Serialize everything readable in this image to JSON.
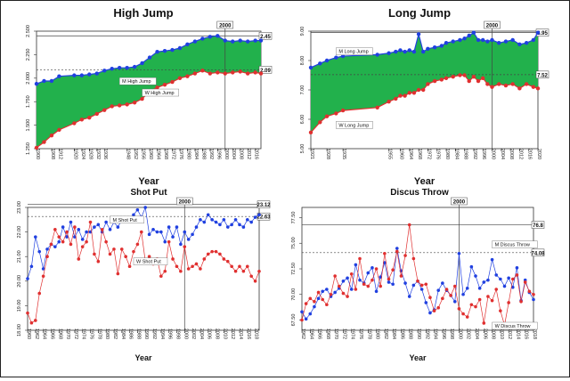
{
  "charts": [
    {
      "type": "area",
      "title": "High Jump",
      "xlabel": "Year",
      "yticks": [
        "1.250",
        "1.500",
        "1.750",
        "2.000",
        "2.250",
        "2.500"
      ],
      "ylim": [
        1.25,
        2.5
      ],
      "xticks": [
        "1900",
        "1908",
        "1912",
        "1920",
        "1924",
        "1928",
        "1932",
        "1936",
        "1948",
        "1952",
        "1956",
        "1960",
        "1964",
        "1968",
        "1972",
        "1976",
        "1980",
        "1984",
        "1988",
        "1992",
        "1996",
        "2000",
        "2004",
        "2008",
        "2012",
        "2016",
        "2020"
      ],
      "vline_x": 2000,
      "vline_label": "2000",
      "hlines": [
        {
          "y": 2.45,
          "label": "2.45",
          "style": "solid"
        },
        {
          "y": 2.09,
          "label": "2.09",
          "style": "dashed"
        }
      ],
      "series": [
        {
          "name": "M High Jump",
          "color": "#2040e0",
          "x": [
            1900,
            1904,
            1908,
            1912,
            1920,
            1924,
            1928,
            1932,
            1936,
            1940,
            1944,
            1948,
            1952,
            1956,
            1960,
            1964,
            1968,
            1972,
            1976,
            1980,
            1984,
            1988,
            1992,
            1996,
            2000,
            2004,
            2008,
            2012,
            2016,
            2019
          ],
          "y": [
            1.94,
            1.97,
            1.97,
            2.02,
            2.03,
            2.03,
            2.04,
            2.05,
            2.08,
            2.1,
            2.11,
            2.11,
            2.12,
            2.16,
            2.22,
            2.28,
            2.29,
            2.3,
            2.32,
            2.36,
            2.39,
            2.42,
            2.44,
            2.45,
            2.4,
            2.39,
            2.4,
            2.39,
            2.4,
            2.4
          ]
        },
        {
          "name": "W High Jump",
          "color": "#e03030",
          "x": [
            1900,
            1904,
            1908,
            1912,
            1920,
            1924,
            1928,
            1932,
            1936,
            1940,
            1944,
            1948,
            1952,
            1956,
            1960,
            1964,
            1968,
            1972,
            1976,
            1980,
            1984,
            1988,
            1992,
            1996,
            2000,
            2004,
            2008,
            2012,
            2016,
            2019
          ],
          "y": [
            1.26,
            1.32,
            1.39,
            1.45,
            1.52,
            1.56,
            1.58,
            1.62,
            1.66,
            1.7,
            1.71,
            1.72,
            1.74,
            1.78,
            1.86,
            1.9,
            1.93,
            1.96,
            2.0,
            2.02,
            2.05,
            2.08,
            2.05,
            2.06,
            2.05,
            2.06,
            2.07,
            2.05,
            2.06,
            2.05
          ]
        }
      ],
      "annotations": [
        "M High Jump",
        "W High Jump"
      ]
    },
    {
      "type": "area",
      "title": "Long Jump",
      "xlabel": "Year",
      "yticks": [
        "5.00",
        "6.00",
        "7.00",
        "8.00",
        "9.00"
      ],
      "ylim": [
        5.0,
        9.0
      ],
      "xticks": [
        "1921",
        "1928",
        "1935",
        "1955",
        "1960",
        "1964",
        "1968",
        "1972",
        "1976",
        "1980",
        "1984",
        "1988",
        "1992",
        "1996",
        "2000",
        "2004",
        "2008",
        "2012",
        "2016",
        "2020"
      ],
      "vline_x": 2000,
      "vline_label": "2000",
      "hlines": [
        {
          "y": 8.95,
          "label": "8.95",
          "style": "solid"
        },
        {
          "y": 7.52,
          "label": "7.52",
          "style": "dashed"
        }
      ],
      "series": [
        {
          "name": "M Long Jump",
          "color": "#2040e0",
          "x": [
            1921,
            1925,
            1928,
            1932,
            1935,
            1950,
            1955,
            1958,
            1960,
            1962,
            1964,
            1966,
            1968,
            1970,
            1972,
            1975,
            1978,
            1980,
            1983,
            1986,
            1988,
            1990,
            1992,
            1994,
            1996,
            1998,
            2000,
            2003,
            2006,
            2009,
            2012,
            2015,
            2018,
            2020
          ],
          "y": [
            7.76,
            7.9,
            8.0,
            8.1,
            8.15,
            8.2,
            8.25,
            8.3,
            8.35,
            8.3,
            8.35,
            8.3,
            8.9,
            8.3,
            8.4,
            8.45,
            8.5,
            8.6,
            8.65,
            8.7,
            8.75,
            8.85,
            8.95,
            8.7,
            8.7,
            8.65,
            8.7,
            8.6,
            8.65,
            8.7,
            8.55,
            8.6,
            8.7,
            8.95
          ]
        },
        {
          "name": "W Long Jump",
          "color": "#e03030",
          "x": [
            1921,
            1925,
            1928,
            1932,
            1935,
            1950,
            1955,
            1958,
            1960,
            1962,
            1964,
            1966,
            1968,
            1970,
            1972,
            1975,
            1978,
            1980,
            1983,
            1986,
            1988,
            1990,
            1992,
            1994,
            1996,
            1998,
            2000,
            2003,
            2006,
            2009,
            2012,
            2015,
            2018,
            2020
          ],
          "y": [
            5.55,
            5.9,
            6.1,
            6.2,
            6.3,
            6.4,
            6.6,
            6.7,
            6.8,
            6.8,
            6.9,
            6.9,
            7.0,
            7.0,
            7.2,
            7.3,
            7.35,
            7.4,
            7.45,
            7.5,
            7.5,
            7.3,
            7.45,
            7.3,
            7.4,
            7.2,
            7.1,
            7.2,
            7.15,
            7.2,
            7.05,
            7.2,
            7.1,
            7.05
          ]
        }
      ],
      "annotations": [
        "M Long Jump",
        "W Long Jump"
      ]
    },
    {
      "type": "line",
      "title": "Shot Put",
      "xlabel": "Year",
      "yticks": [
        "18.00",
        "19.00",
        "20.00",
        "21.00",
        "22.00",
        "23.00"
      ],
      "ylim": [
        18.0,
        23.0
      ],
      "xticks": [
        "1960",
        "1962",
        "1964",
        "1966",
        "1968",
        "1970",
        "1972",
        "1974",
        "1976",
        "1978",
        "1980",
        "1982",
        "1984",
        "1986",
        "1988",
        "1990",
        "1992",
        "1994",
        "1996",
        "1998",
        "2000",
        "2002",
        "2004",
        "2006",
        "2008",
        "2010",
        "2012",
        "2014",
        "2016",
        "2018"
      ],
      "vline_x": 2000,
      "vline_label": "2000",
      "hlines": [
        {
          "y": 23.12,
          "label": "23.12",
          "style": "solid"
        },
        {
          "y": 22.63,
          "label": "22.63",
          "style": "dashed"
        }
      ],
      "series": [
        {
          "name": "M Shot Put",
          "color": "#2040e0",
          "x": [
            1960,
            1961,
            1962,
            1963,
            1964,
            1965,
            1966,
            1967,
            1968,
            1969,
            1970,
            1971,
            1972,
            1973,
            1974,
            1975,
            1976,
            1977,
            1978,
            1979,
            1980,
            1981,
            1982,
            1983,
            1984,
            1985,
            1986,
            1987,
            1988,
            1989,
            1990,
            1991,
            1992,
            1993,
            1994,
            1995,
            1996,
            1997,
            1998,
            1999,
            2000,
            2001,
            2002,
            2003,
            2004,
            2005,
            2006,
            2007,
            2008,
            2009,
            2010,
            2011,
            2012,
            2013,
            2014,
            2015,
            2016,
            2017,
            2018,
            2019
          ],
          "y": [
            20.1,
            20.6,
            21.8,
            21.2,
            20.5,
            21.3,
            21.5,
            21.4,
            21.6,
            22.2,
            21.8,
            22.4,
            21.8,
            22.1,
            21.7,
            22.0,
            22.0,
            22.2,
            22.3,
            22.0,
            22.4,
            22.1,
            22.4,
            22.2,
            22.5,
            22.5,
            22.5,
            22.7,
            22.9,
            22.6,
            23.0,
            21.9,
            22.1,
            22.0,
            22.0,
            21.6,
            22.2,
            21.8,
            22.2,
            21.5,
            22.0,
            21.7,
            21.9,
            22.2,
            22.5,
            22.4,
            22.7,
            22.5,
            22.4,
            22.3,
            22.5,
            22.2,
            22.3,
            22.5,
            22.3,
            22.2,
            22.5,
            22.4,
            22.6,
            22.7
          ]
        },
        {
          "name": "W Shot Put",
          "color": "#e03030",
          "x": [
            1960,
            1961,
            1962,
            1963,
            1964,
            1965,
            1966,
            1967,
            1968,
            1969,
            1970,
            1971,
            1972,
            1973,
            1974,
            1975,
            1976,
            1977,
            1978,
            1979,
            1980,
            1981,
            1982,
            1983,
            1984,
            1985,
            1986,
            1987,
            1988,
            1989,
            1990,
            1991,
            1992,
            1993,
            1994,
            1995,
            1996,
            1997,
            1998,
            1999,
            2000,
            2001,
            2002,
            2003,
            2004,
            2005,
            2006,
            2007,
            2008,
            2009,
            2010,
            2011,
            2012,
            2013,
            2014,
            2015,
            2016,
            2017,
            2018,
            2019
          ],
          "y": [
            18.7,
            18.3,
            18.4,
            19.5,
            20.2,
            21.0,
            21.5,
            22.1,
            21.8,
            21.6,
            22.0,
            21.5,
            22.2,
            20.9,
            21.4,
            21.6,
            22.4,
            21.1,
            20.8,
            22.1,
            21.6,
            21.1,
            21.3,
            20.3,
            21.3,
            21.0,
            20.6,
            21.2,
            21.5,
            22.0,
            20.8,
            21.0,
            20.7,
            20.9,
            20.2,
            20.4,
            21.6,
            20.9,
            20.6,
            20.4,
            21.4,
            20.5,
            20.6,
            20.7,
            20.5,
            20.9,
            21.1,
            21.2,
            21.2,
            21.1,
            20.9,
            20.8,
            20.6,
            20.4,
            20.6,
            20.4,
            20.6,
            20.2,
            20.0,
            20.4
          ]
        }
      ],
      "annotations": [
        "M Shot Put",
        "W Shot Put"
      ]
    },
    {
      "type": "line",
      "title": "Discus Throw",
      "xlabel": "Year",
      "yticks": [
        "67.50",
        "70.00",
        "72.50",
        "75.00",
        "77.50"
      ],
      "ylim": [
        66.5,
        78.5
      ],
      "xticks": [
        "1962",
        "1964",
        "1966",
        "1968",
        "1970",
        "1972",
        "1974",
        "1976",
        "1978",
        "1980",
        "1982",
        "1984",
        "1986",
        "1988",
        "1990",
        "1992",
        "1994",
        "1996",
        "1998",
        "2000",
        "2002",
        "2004",
        "2006",
        "2008",
        "2010",
        "2012",
        "2014",
        "2016",
        "2018"
      ],
      "vline_x": 2000,
      "vline_label": "2000",
      "hlines": [
        {
          "y": 76.8,
          "label": "76.8",
          "style": "solid"
        },
        {
          "y": 74.08,
          "label": "74.08",
          "style": "dashed"
        }
      ],
      "series": [
        {
          "name": "M Discus Throw",
          "color": "#2040e0",
          "x": [
            1962,
            1963,
            1964,
            1965,
            1966,
            1967,
            1968,
            1969,
            1970,
            1971,
            1972,
            1973,
            1974,
            1975,
            1976,
            1977,
            1978,
            1979,
            1980,
            1981,
            1982,
            1983,
            1984,
            1985,
            1986,
            1987,
            1988,
            1989,
            1990,
            1991,
            1992,
            1993,
            1994,
            1995,
            1996,
            1997,
            1998,
            1999,
            2000,
            2001,
            2002,
            2003,
            2004,
            2005,
            2006,
            2007,
            2008,
            2009,
            2010,
            2011,
            2012,
            2013,
            2014,
            2015,
            2016,
            2017,
            2018
          ],
          "y": [
            68.3,
            67.6,
            68.1,
            68.8,
            69.6,
            70.3,
            70.5,
            69.8,
            70.2,
            70.6,
            71.3,
            71.6,
            70.5,
            72.9,
            71.4,
            71.1,
            72.1,
            72.6,
            70.3,
            71.7,
            73.1,
            71.2,
            71.0,
            74.5,
            72.3,
            71.1,
            69.8,
            70.9,
            71.3,
            70.5,
            69.2,
            68.2,
            68.5,
            70.4,
            71.1,
            70.4,
            69.9,
            69.3,
            74.0,
            70.0,
            70.6,
            72.7,
            71.8,
            70.6,
            71.2,
            71.4,
            73.4,
            71.9,
            71.5,
            70.8,
            71.6,
            70.7,
            72.6,
            69.4,
            71.4,
            70.2,
            69.5
          ]
        },
        {
          "name": "W Discus Throw",
          "color": "#e03030",
          "x": [
            1962,
            1963,
            1964,
            1965,
            1966,
            1967,
            1968,
            1969,
            1970,
            1971,
            1972,
            1973,
            1974,
            1975,
            1976,
            1977,
            1978,
            1979,
            1980,
            1981,
            1982,
            1983,
            1984,
            1985,
            1986,
            1987,
            1988,
            1989,
            1990,
            1991,
            1992,
            1993,
            1994,
            1995,
            1996,
            1997,
            1998,
            1999,
            2000,
            2001,
            2002,
            2003,
            2004,
            2005,
            2006,
            2007,
            2008,
            2009,
            2010,
            2011,
            2012,
            2013,
            2014,
            2015,
            2016,
            2017,
            2018
          ],
          "y": [
            67.5,
            69.1,
            69.6,
            69.3,
            70.2,
            69.5,
            69.0,
            70.0,
            71.8,
            70.8,
            70.1,
            69.8,
            72.0,
            70.5,
            73.5,
            71.0,
            70.8,
            71.4,
            72.5,
            70.8,
            74.0,
            71.5,
            72.4,
            74.2,
            71.8,
            73.8,
            76.8,
            73.5,
            71.3,
            70.9,
            71.0,
            69.7,
            68.4,
            68.7,
            69.6,
            70.5,
            69.9,
            70.8,
            68.6,
            68.1,
            67.8,
            69.0,
            68.8,
            69.5,
            67.2,
            69.8,
            69.4,
            70.5,
            68.4,
            67.0,
            69.2,
            71.5,
            71.9,
            69.3,
            71.2,
            70.3,
            70.0
          ]
        }
      ],
      "annotations": [
        "M Discus Throw",
        "W Discus Throw"
      ]
    }
  ]
}
